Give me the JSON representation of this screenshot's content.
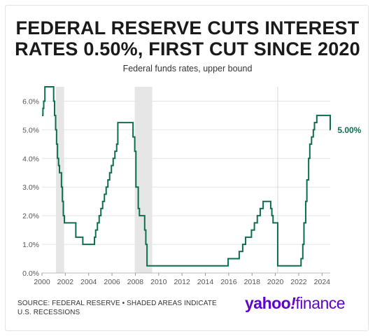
{
  "header": {
    "title_line1": "FEDERAL RESERVE CUTS INTEREST",
    "title_line2": "RATES 0.50%, FIRST CUT SINCE 2020",
    "subtitle": "Federal funds rates, upper bound"
  },
  "footer": {
    "source_line1": "SOURCE: FEDERAL RESERVE • SHADED AREAS INDICATE",
    "source_line2": "U.S. RECESSIONS",
    "brand_part1": "yahoo",
    "brand_sep": "!",
    "brand_part2": "finance",
    "brand_color": "#5f01d1"
  },
  "chart_data": {
    "type": "line",
    "title": "FEDERAL RESERVE CUTS INTEREST RATES 0.50%, FIRST CUT SINCE 2020",
    "subtitle": "Federal funds rates, upper bound",
    "xlim": [
      2000,
      2024.7
    ],
    "ylim": [
      0,
      6.5
    ],
    "x_ticks": [
      2000,
      2002,
      2004,
      2006,
      2008,
      2010,
      2012,
      2014,
      2016,
      2018,
      2020,
      2022,
      2024
    ],
    "y_ticks": [
      0,
      1,
      2,
      3,
      4,
      5,
      6
    ],
    "y_tick_labels": [
      "0.0%",
      "1.0%",
      "2.0%",
      "3.0%",
      "4.0%",
      "5.0%",
      "6.0%"
    ],
    "grid": "horizontal",
    "line_color": "#0d6e4f",
    "recession_color": "#e6e6e6",
    "recessions": [
      [
        2001.2,
        2001.9
      ],
      [
        2007.95,
        2009.45
      ]
    ],
    "reference_lines": [
      2020.2
    ],
    "end_label": "5.00%",
    "series": [
      {
        "x": [
          2000.0,
          2000.08,
          2000.15,
          2000.25,
          2000.4,
          2001.0,
          2001.08,
          2001.17,
          2001.25,
          2001.33,
          2001.42,
          2001.5,
          2001.67,
          2001.75,
          2001.83,
          2001.92,
          2002.0,
          2002.9,
          2003.5,
          2004.5,
          2004.6,
          2004.75,
          2004.9,
          2005.05,
          2005.2,
          2005.35,
          2005.5,
          2005.65,
          2005.8,
          2005.95,
          2006.1,
          2006.25,
          2006.4,
          2006.5,
          2007.7,
          2007.8,
          2007.95,
          2008.05,
          2008.15,
          2008.25,
          2008.35,
          2008.8,
          2008.9,
          2009.0,
          2015.95,
          2016.9,
          2017.2,
          2017.45,
          2017.95,
          2018.2,
          2018.45,
          2018.7,
          2018.95,
          2019.6,
          2019.7,
          2019.8,
          2020.2,
          2020.25,
          2022.2,
          2022.35,
          2022.45,
          2022.6,
          2022.7,
          2022.85,
          2022.95,
          2023.1,
          2023.25,
          2023.35,
          2023.55,
          2024.7,
          2024.72
        ],
        "values": [
          5.5,
          5.75,
          6.0,
          6.5,
          6.5,
          6.0,
          5.5,
          5.0,
          4.5,
          4.0,
          3.75,
          3.5,
          3.0,
          2.5,
          2.0,
          1.75,
          1.75,
          1.25,
          1.0,
          1.25,
          1.5,
          1.75,
          2.0,
          2.25,
          2.5,
          2.75,
          3.0,
          3.25,
          3.5,
          3.75,
          4.0,
          4.25,
          4.5,
          5.25,
          5.25,
          4.75,
          4.25,
          3.0,
          3.0,
          2.25,
          2.0,
          1.5,
          1.0,
          0.25,
          0.5,
          0.75,
          1.0,
          1.25,
          1.5,
          1.75,
          2.0,
          2.25,
          2.5,
          2.25,
          2.0,
          1.75,
          0.25,
          0.25,
          0.5,
          1.0,
          1.75,
          2.5,
          3.25,
          4.0,
          4.5,
          4.75,
          5.0,
          5.25,
          5.5,
          5.0,
          5.0
        ]
      }
    ]
  }
}
